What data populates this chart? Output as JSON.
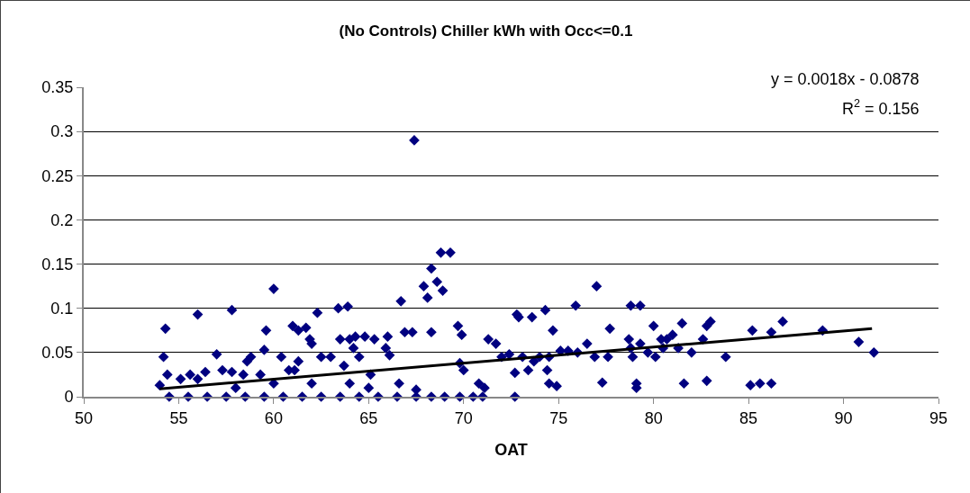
{
  "chart_data": {
    "type": "scatter",
    "title": "(No Controls) Chiller kWh with Occ<=0.1",
    "xlabel": "OAT",
    "annotations": [
      "y = 0.0018x - 0.0878",
      "R$^{2}$ = 0.156"
    ],
    "xlim": [
      50,
      95
    ],
    "xticks": [
      50,
      55,
      60,
      65,
      70,
      75,
      80,
      85,
      90,
      95
    ],
    "ylim": [
      0,
      0.35
    ],
    "yticks": [
      0,
      0.05,
      0.1,
      0.15,
      0.2,
      0.25,
      0.3,
      0.35
    ],
    "grid": "y",
    "series": [
      {
        "marker": "diamond",
        "color": "#000080",
        "x": [
          67.4,
          68.8,
          69.3,
          67.9,
          68.3,
          68.6,
          68.9,
          68.1,
          66.7,
          60,
          57.8,
          56,
          54.3,
          54.2,
          54.4,
          54,
          59.6,
          61,
          61.7,
          62.3,
          63.4,
          63.9,
          61.9,
          62,
          63.5,
          64,
          64.3,
          64.8,
          65.3,
          66,
          66.9,
          67.3,
          65.9,
          66.1,
          64.5,
          64.2,
          63,
          62.5,
          61.3,
          60.4,
          60.8,
          61.1,
          59.5,
          58.6,
          58.8,
          58.4,
          57.8,
          57.3,
          57,
          56.4,
          56,
          55.6,
          55.1,
          55.5,
          56.5,
          57.5,
          58.5,
          59.5,
          60.5,
          61.5,
          62.5,
          63.5,
          64.5,
          65.5,
          66.5,
          67.5,
          68.3,
          69,
          69.8,
          70.5,
          71,
          54.5,
          58,
          60,
          62,
          64,
          65,
          66.6,
          67.5,
          63.7,
          65.1,
          59.3,
          61.3,
          68.3,
          69.7,
          69.9,
          69.8,
          70,
          70.8,
          71.1,
          71.3,
          71.7,
          72,
          72.4,
          72.7,
          72.8,
          72.9,
          72.7,
          73.1,
          73.4,
          73.6,
          73.7,
          74,
          74.3,
          74.5,
          74.4,
          74.7,
          74.5,
          74.9,
          75.1,
          75.5,
          75.9,
          76,
          76.5,
          77,
          76.9,
          77.3,
          77.6,
          77.7,
          78.7,
          78.8,
          79.3,
          78.9,
          79.1,
          79.1,
          79.3,
          79.7,
          80,
          80.1,
          80.4,
          80.7,
          81,
          81.3,
          81.5,
          81.6,
          82,
          82.6,
          82.8,
          83,
          82.8,
          83.8,
          85.1,
          85.2,
          85.6,
          86.2,
          86.8,
          86.2,
          88.9,
          90.8,
          91.6,
          78.8,
          80.5
        ],
        "values": [
          0.29,
          0.163,
          0.163,
          0.125,
          0.145,
          0.13,
          0.12,
          0.112,
          0.108,
          0.122,
          0.098,
          0.093,
          0.077,
          0.045,
          0.025,
          0.013,
          0.075,
          0.08,
          0.078,
          0.095,
          0.1,
          0.102,
          0.065,
          0.06,
          0.065,
          0.065,
          0.068,
          0.068,
          0.065,
          0.068,
          0.073,
          0.073,
          0.055,
          0.047,
          0.045,
          0.055,
          0.045,
          0.045,
          0.04,
          0.045,
          0.03,
          0.03,
          0.053,
          0.04,
          0.045,
          0.025,
          0.028,
          0.03,
          0.048,
          0.028,
          0.02,
          0.025,
          0.02,
          0,
          0,
          0,
          0,
          0,
          0,
          0,
          0,
          0,
          0,
          0,
          0,
          0,
          0,
          0,
          0,
          0,
          0,
          0,
          0.01,
          0.015,
          0.015,
          0.015,
          0.01,
          0.015,
          0.008,
          0.035,
          0.025,
          0.025,
          0.075,
          0.073,
          0.08,
          0.07,
          0.038,
          0.03,
          0.015,
          0.01,
          0.065,
          0.06,
          0.045,
          0.048,
          0,
          0.093,
          0.09,
          0.027,
          0.045,
          0.03,
          0.09,
          0.04,
          0.045,
          0.098,
          0.045,
          0.03,
          0.075,
          0.015,
          0.012,
          0.052,
          0.052,
          0.103,
          0.05,
          0.06,
          0.125,
          0.045,
          0.016,
          0.045,
          0.077,
          0.065,
          0.103,
          0.103,
          0.045,
          0.015,
          0.01,
          0.06,
          0.05,
          0.08,
          0.045,
          0.065,
          0.065,
          0.07,
          0.055,
          0.083,
          0.015,
          0.05,
          0.065,
          0.08,
          0.085,
          0.018,
          0.045,
          0.013,
          0.075,
          0.015,
          0.073,
          0.085,
          0.015,
          0.075,
          0.062,
          0.05,
          0.055,
          0.055
        ]
      },
      {
        "type": "line",
        "marker": "none",
        "line_style": "solid",
        "color": "#000000",
        "x": [
          54,
          91.5
        ],
        "values": [
          0.009,
          0.077
        ]
      }
    ]
  }
}
